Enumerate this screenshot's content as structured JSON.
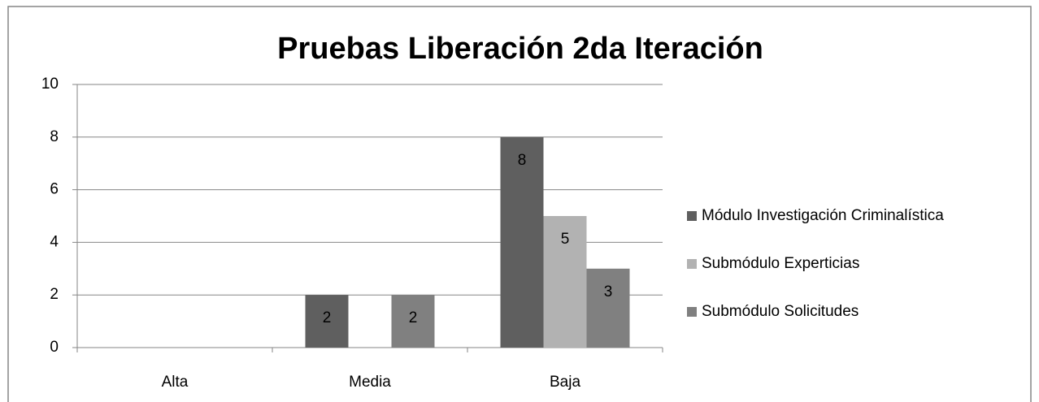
{
  "chart_data": {
    "type": "bar",
    "title": "Pruebas Liberación 2da Iteración",
    "categories": [
      "Alta",
      "Media",
      "Baja"
    ],
    "series": [
      {
        "name": "Módulo Investigación Criminalística",
        "color": "#5f5f5f",
        "values": [
          0,
          2,
          8
        ]
      },
      {
        "name": "Submódulo Experticias",
        "color": "#b2b2b2",
        "values": [
          0,
          0,
          5
        ]
      },
      {
        "name": "Submódulo Solicitudes",
        "color": "#808080",
        "values": [
          0,
          2,
          3
        ]
      }
    ],
    "ylim": [
      0,
      10
    ],
    "yticks": [
      0,
      2,
      4,
      6,
      8,
      10
    ],
    "grid": true,
    "legend": "right"
  }
}
